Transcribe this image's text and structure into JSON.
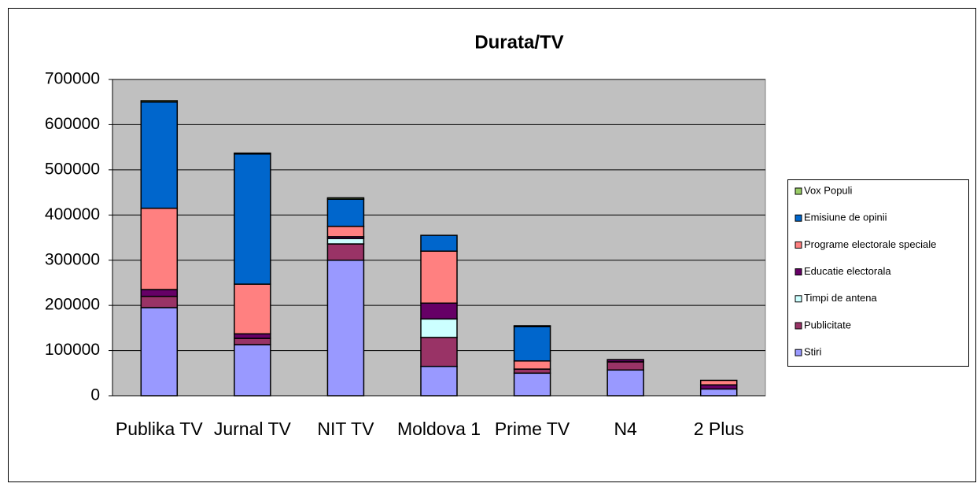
{
  "chart_data": {
    "type": "stacked_bar",
    "title": "Durata/TV",
    "categories": [
      "Publika TV",
      "Jurnal TV",
      "NIT TV",
      "Moldova 1",
      "Prime TV",
      "N4",
      "2 Plus"
    ],
    "series": [
      {
        "name": "Stiri",
        "color": "#9999ff",
        "values": [
          195000,
          113000,
          300000,
          65000,
          50000,
          57000,
          15000
        ]
      },
      {
        "name": "Publicitate",
        "color": "#993366",
        "values": [
          25000,
          14000,
          36000,
          64000,
          9000,
          18000,
          0
        ]
      },
      {
        "name": "Timpi de antena",
        "color": "#ccffff",
        "values": [
          0,
          0,
          12000,
          41000,
          0,
          0,
          0
        ]
      },
      {
        "name": "Educatie electorala",
        "color": "#660066",
        "values": [
          15000,
          10000,
          4000,
          35000,
          0,
          5000,
          9000
        ]
      },
      {
        "name": "Programe electorale speciale",
        "color": "#ff8080",
        "values": [
          180000,
          110000,
          23000,
          115000,
          18000,
          0,
          10000
        ]
      },
      {
        "name": "Emisiune de opinii",
        "color": "#0066cc",
        "values": [
          235000,
          288000,
          60000,
          35000,
          76000,
          0,
          0
        ]
      },
      {
        "name": "Vox Populi",
        "color": "#99cc66",
        "values": [
          3000,
          2000,
          3000,
          0,
          2000,
          0,
          0
        ]
      }
    ],
    "ylim": [
      0,
      700000
    ],
    "yticks": [
      0,
      100000,
      200000,
      300000,
      400000,
      500000,
      600000,
      700000
    ],
    "grid": true,
    "legend": "right"
  }
}
